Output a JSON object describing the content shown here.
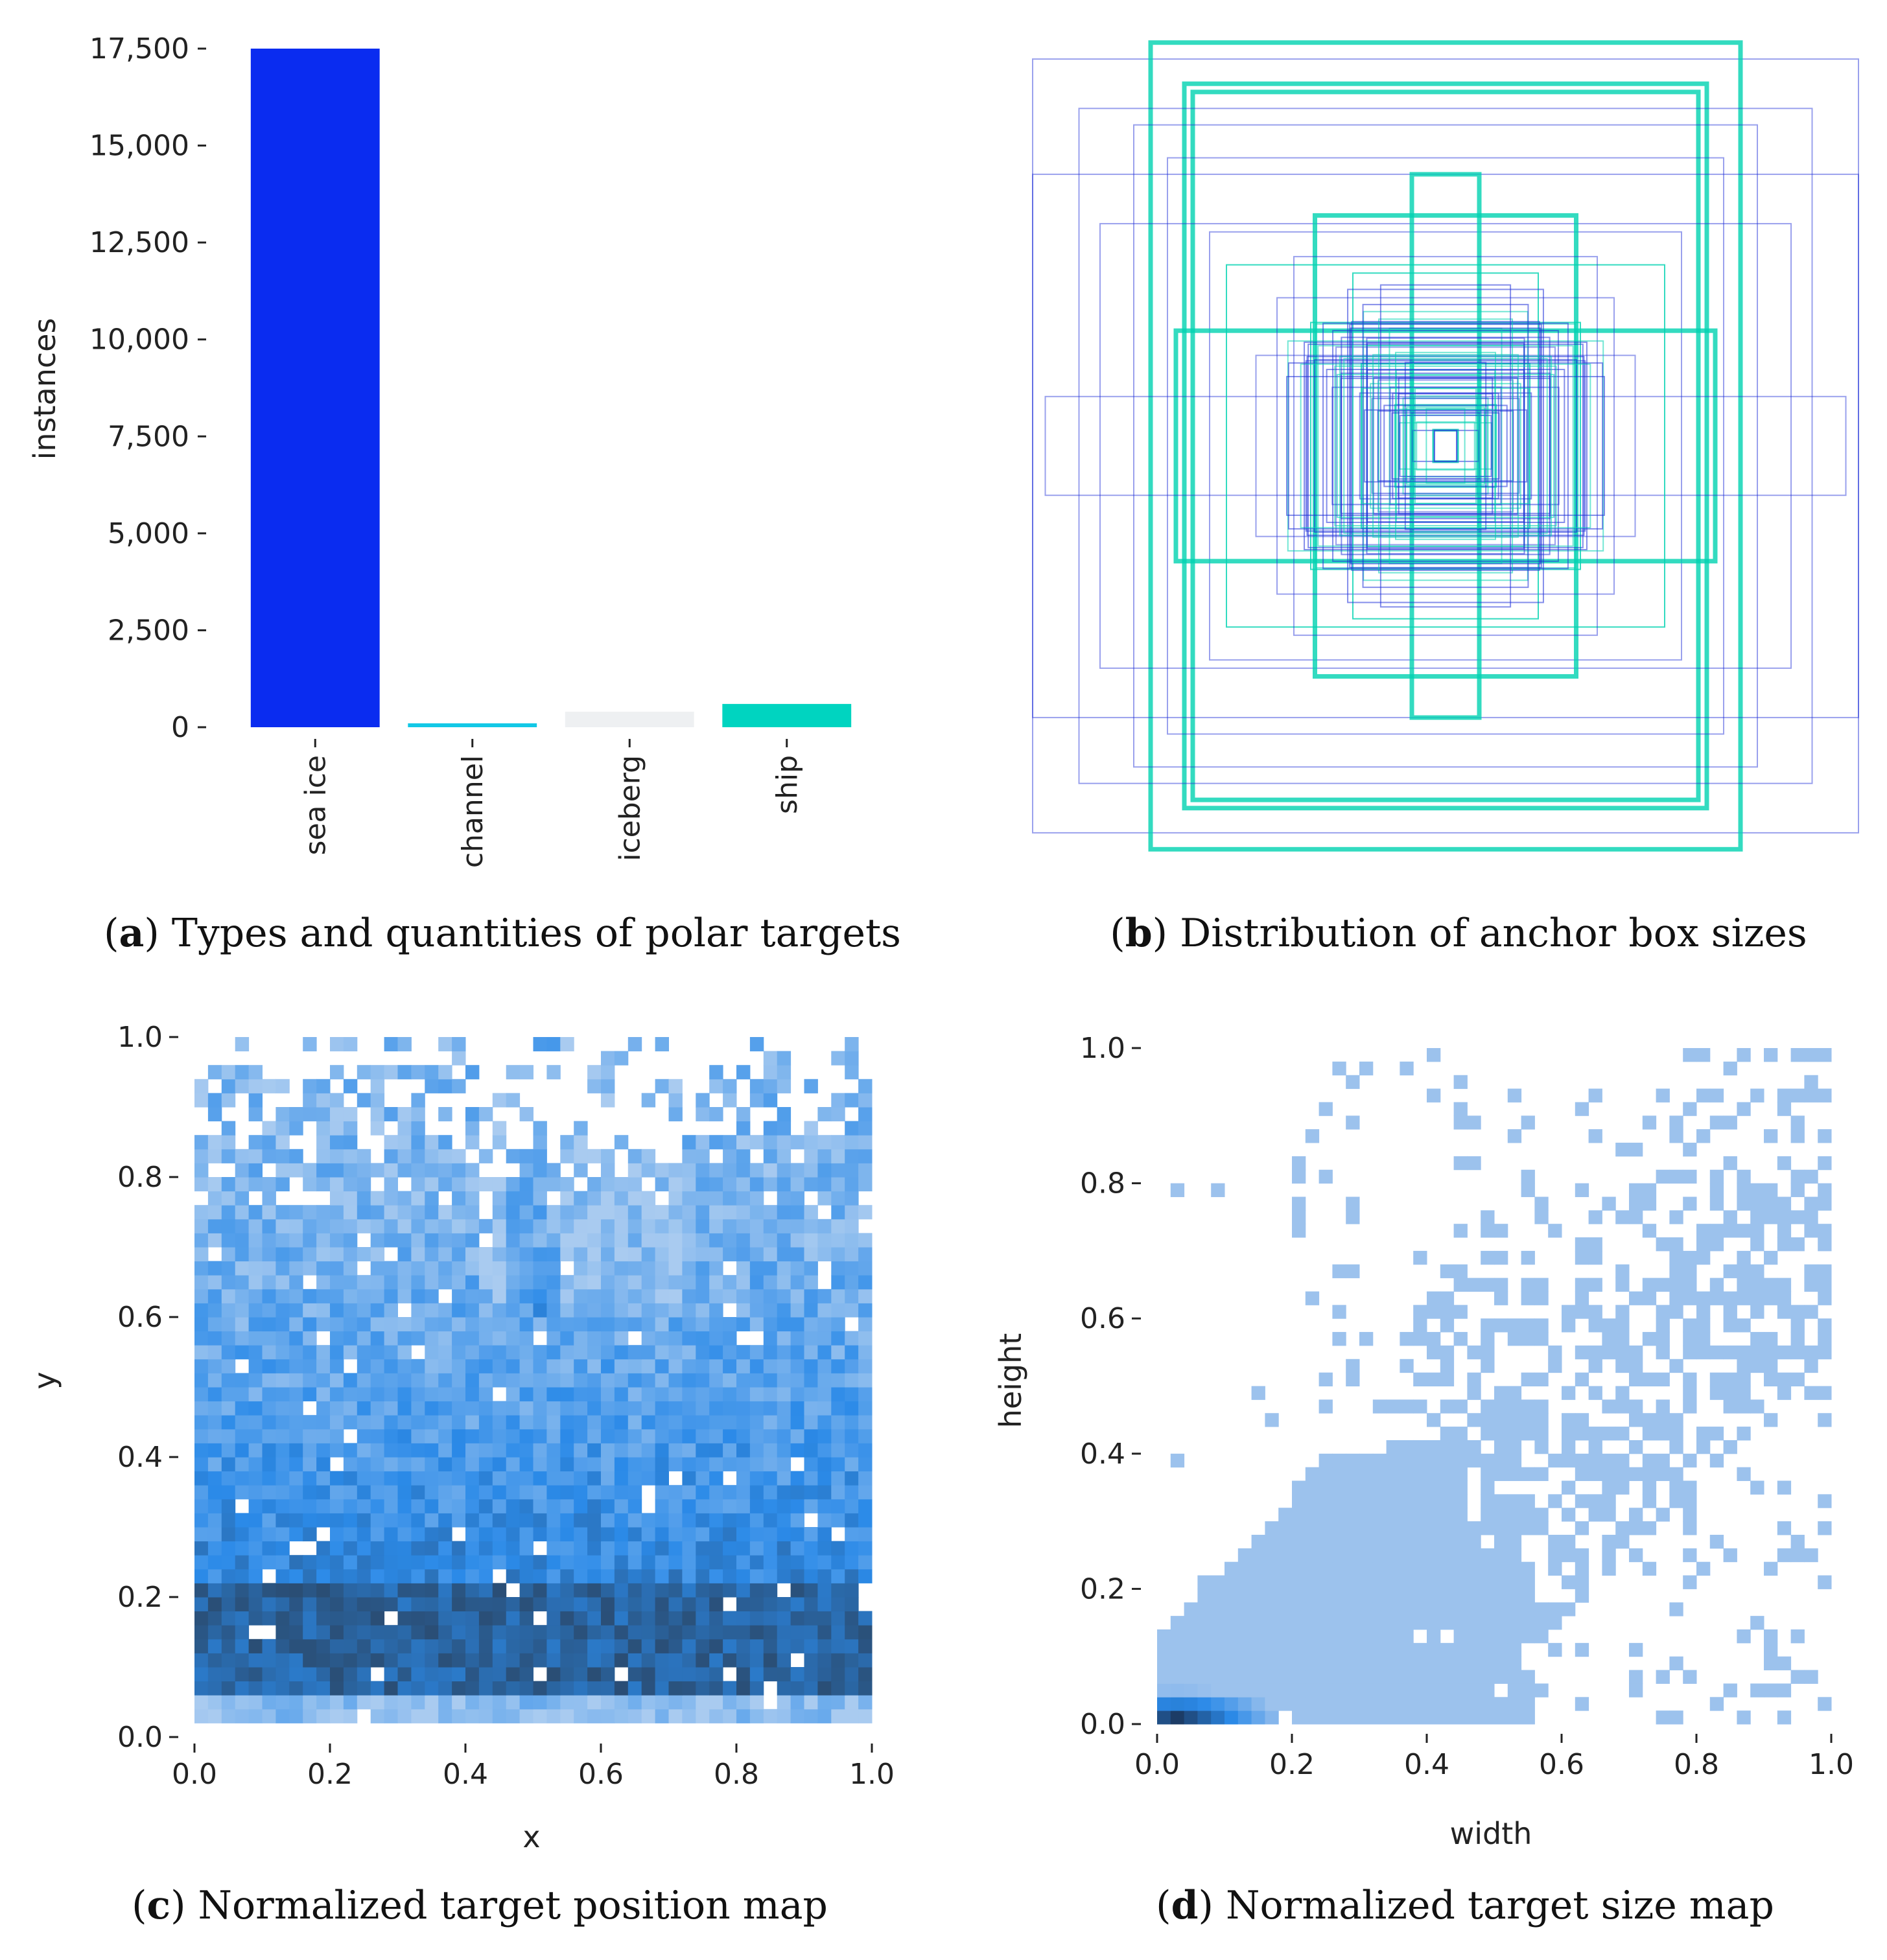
{
  "chart_data": [
    {
      "panel": "a",
      "type": "bar",
      "caption_letter": "a",
      "caption_text": "Types and quantities of polar targets",
      "ylabel": "instances",
      "ylim": [
        0,
        17500
      ],
      "yticks": [
        0,
        2500,
        5000,
        7500,
        10000,
        12500,
        15000,
        17500
      ],
      "ytick_labels": [
        "0",
        "2,500",
        "5,000",
        "7,500",
        "10,000",
        "12,500",
        "15,000",
        "17,500"
      ],
      "categories": [
        "sea ice",
        "channel",
        "iceberg",
        "ship"
      ],
      "values": [
        17500,
        100,
        400,
        600
      ],
      "colors": [
        "#0a2cf0",
        "#12c8e6",
        "#eef0f2",
        "#00d4c0"
      ]
    },
    {
      "panel": "b",
      "type": "box-overlay",
      "caption_letter": "b",
      "caption_text": "Distribution of anchor box sizes",
      "colors": [
        "#1f2fd8",
        "#00d2b0"
      ],
      "boxes": [
        {
          "w": 0.98,
          "h": 0.94,
          "color": 0
        },
        {
          "w": 0.7,
          "h": 0.98,
          "color": 1
        },
        {
          "w": 0.62,
          "h": 0.88,
          "color": 1
        },
        {
          "w": 0.6,
          "h": 0.86,
          "color": 1
        },
        {
          "w": 0.87,
          "h": 0.82,
          "color": 0
        },
        {
          "w": 0.74,
          "h": 0.78,
          "color": 0
        },
        {
          "w": 0.98,
          "h": 0.66,
          "color": 0
        },
        {
          "w": 0.66,
          "h": 0.7,
          "color": 0
        },
        {
          "w": 0.82,
          "h": 0.54,
          "color": 0
        },
        {
          "w": 0.56,
          "h": 0.52,
          "color": 0
        },
        {
          "w": 0.64,
          "h": 0.28,
          "color": 1
        },
        {
          "w": 0.31,
          "h": 0.56,
          "color": 1
        },
        {
          "w": 0.08,
          "h": 0.66,
          "color": 1
        },
        {
          "w": 0.95,
          "h": 0.12,
          "color": 0
        },
        {
          "w": 0.4,
          "h": 0.36,
          "color": 0
        },
        {
          "w": 0.32,
          "h": 0.3,
          "color": 1
        },
        {
          "w": 0.26,
          "h": 0.24,
          "color": 0
        },
        {
          "w": 0.2,
          "h": 0.2,
          "color": 1
        },
        {
          "w": 0.16,
          "h": 0.16,
          "color": 0
        },
        {
          "w": 0.12,
          "h": 0.1,
          "color": 1
        },
        {
          "w": 0.08,
          "h": 0.08,
          "color": 0
        },
        {
          "w": 0.03,
          "h": 0.04,
          "color": 1
        },
        {
          "w": 0.45,
          "h": 0.22,
          "color": 0
        },
        {
          "w": 0.22,
          "h": 0.42,
          "color": 1
        },
        {
          "w": 0.52,
          "h": 0.44,
          "color": 1
        },
        {
          "w": 0.36,
          "h": 0.46,
          "color": 0
        }
      ]
    },
    {
      "panel": "c",
      "type": "heatmap",
      "caption_letter": "c",
      "caption_text": "Normalized target position map",
      "xlabel": "x",
      "ylabel": "y",
      "xlim": [
        0,
        1
      ],
      "ylim": [
        0,
        1
      ],
      "xticks": [
        0.0,
        0.2,
        0.4,
        0.6,
        0.8,
        1.0
      ],
      "xtick_labels": [
        "0.0",
        "0.2",
        "0.4",
        "0.6",
        "0.8",
        "1.0"
      ],
      "yticks": [
        0.0,
        0.2,
        0.4,
        0.6,
        0.8,
        1.0
      ],
      "ytick_labels": [
        "0.0",
        "0.2",
        "0.4",
        "0.6",
        "0.8",
        "1.0"
      ],
      "grid": [
        50,
        50
      ],
      "density_note": "dense band at y 0.07-0.22; moderate 0.22-0.45; sparse near top with dip at x 0.45-0.7",
      "colors": [
        "#a9cbf0",
        "#2b8ae8",
        "#2a4a6e"
      ]
    },
    {
      "panel": "d",
      "type": "heatmap",
      "caption_letter": "d",
      "caption_text": "Normalized target size map",
      "xlabel": "width",
      "ylabel": "height",
      "xlim": [
        0,
        1
      ],
      "ylim": [
        0,
        1
      ],
      "xticks": [
        0.0,
        0.2,
        0.4,
        0.6,
        0.8,
        1.0
      ],
      "xtick_labels": [
        "0.0",
        "0.2",
        "0.4",
        "0.6",
        "0.8",
        "1.0"
      ],
      "yticks": [
        0.0,
        0.2,
        0.4,
        0.6,
        0.8,
        1.0
      ],
      "ytick_labels": [
        "0.0",
        "0.2",
        "0.4",
        "0.6",
        "0.8",
        "1.0"
      ],
      "grid": [
        50,
        50
      ],
      "hotspot": {
        "width": 0.03,
        "height": 0.01
      },
      "colors": [
        "#a9c8ee",
        "#2b8ae8",
        "#1c3c66"
      ]
    }
  ]
}
